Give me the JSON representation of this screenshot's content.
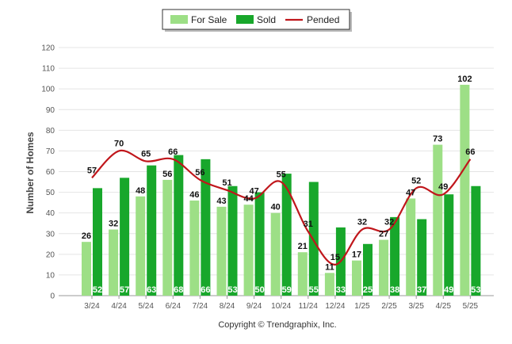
{
  "chart_data": {
    "type": "bar",
    "categories": [
      "3/24",
      "4/24",
      "5/24",
      "6/24",
      "7/24",
      "8/24",
      "9/24",
      "10/24",
      "11/24",
      "12/24",
      "1/25",
      "2/25",
      "3/25",
      "4/25",
      "5/25"
    ],
    "series": [
      {
        "name": "For Sale",
        "kind": "bar",
        "color": "#9ddf86",
        "values": [
          26,
          32,
          48,
          56,
          46,
          43,
          44,
          40,
          21,
          11,
          17,
          27,
          47,
          73,
          102
        ]
      },
      {
        "name": "Sold",
        "kind": "bar",
        "color": "#18a72b",
        "values": [
          52,
          57,
          63,
          68,
          66,
          53,
          50,
          59,
          55,
          33,
          25,
          38,
          37,
          49,
          53
        ]
      },
      {
        "name": "Pended",
        "kind": "line",
        "color": "#c0161b",
        "values": [
          57,
          70,
          65,
          66,
          56,
          51,
          47,
          55,
          31,
          15,
          32,
          32,
          52,
          49,
          66
        ]
      }
    ],
    "ylabel": "Number of Homes",
    "ylim": [
      0,
      120
    ],
    "yticks": [
      0,
      10,
      20,
      30,
      40,
      50,
      60,
      70,
      80,
      90,
      100,
      110,
      120
    ],
    "grid": true,
    "legend": "top-center"
  },
  "footer": {
    "copyright": "Copyright © Trendgraphix, Inc."
  }
}
